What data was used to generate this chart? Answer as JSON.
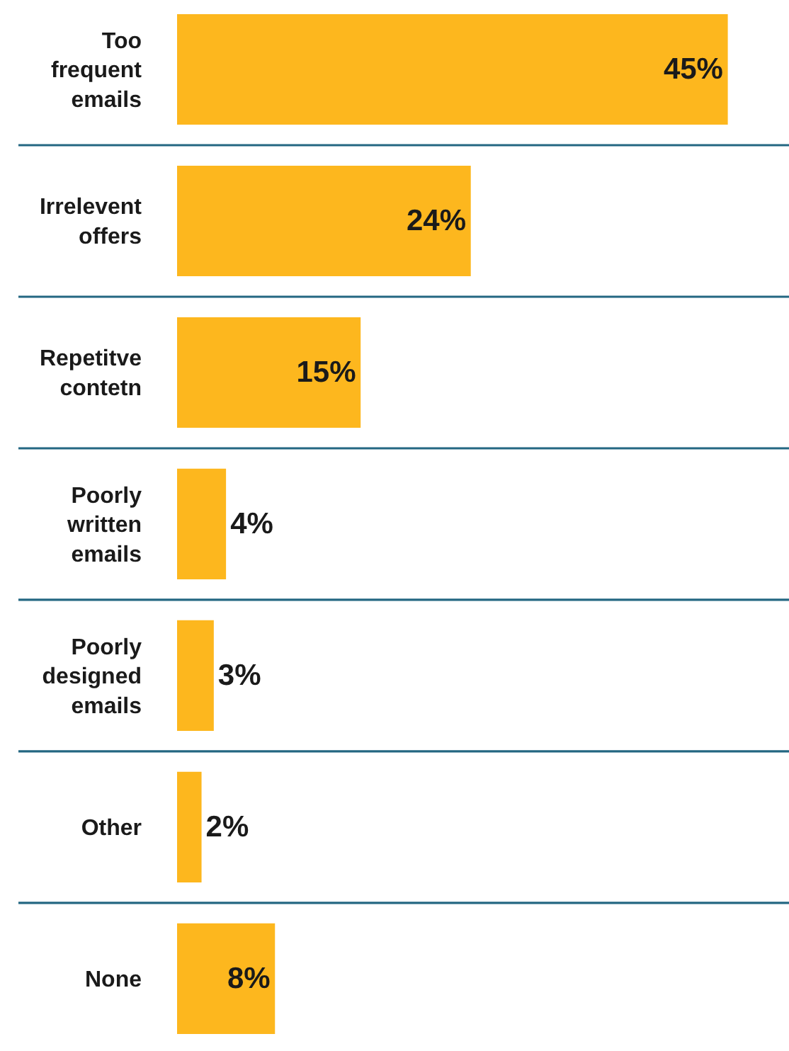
{
  "chart_data": {
    "type": "bar",
    "orientation": "horizontal",
    "categories": [
      "Too frequent emails",
      "Irrelevent offers",
      "Repetitve contetn",
      "Poorly written emails",
      "Poorly designed emails",
      "Other",
      "None"
    ],
    "values": [
      45,
      24,
      15,
      4,
      3,
      2,
      8
    ],
    "value_labels": [
      "45%",
      "24%",
      "15%",
      "4%",
      "3%",
      "2%",
      "8%"
    ],
    "color": "#fdb71e",
    "xlim": [
      0,
      50
    ],
    "grid": "y",
    "tick_labels": "y"
  }
}
